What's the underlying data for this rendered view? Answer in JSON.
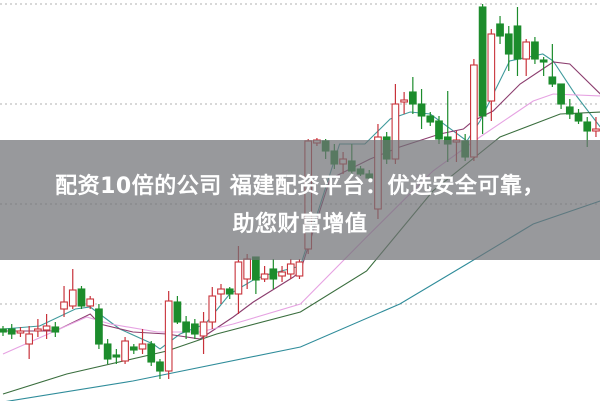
{
  "banner": {
    "line1": "配资10倍的公司 福建配资平台：优选安全可靠，",
    "line2": "助您财富增值"
  },
  "chart_data": {
    "type": "candlestick",
    "title": "",
    "xlabel": "",
    "ylabel": "",
    "ylim": [
      0,
      40.4
    ],
    "grid": true,
    "grid_levels": [
      40,
      30,
      20,
      10
    ],
    "colors": {
      "up": "#c8323a",
      "down": "#1c8c2c",
      "grid": "#b0b0b0",
      "banner": "#707176"
    },
    "candles": [
      [
        7.5,
        7.8,
        6.8,
        7.2
      ],
      [
        7.5,
        8.0,
        6.5,
        7.0
      ],
      [
        7.1,
        7.7,
        6.7,
        7.3
      ],
      [
        6.0,
        7.8,
        4.5,
        7.0
      ],
      [
        7.3,
        8.5,
        6.7,
        7.5
      ],
      [
        7.4,
        9.0,
        6.5,
        7.8
      ],
      [
        7.7,
        8.2,
        6.7,
        7.2
      ],
      [
        9.5,
        11.8,
        8.7,
        10.2
      ],
      [
        9.8,
        13.5,
        9.5,
        11.4
      ],
      [
        11.5,
        11.8,
        9.5,
        9.8
      ],
      [
        9.8,
        10.8,
        9.5,
        10.5
      ],
      [
        9.5,
        10.0,
        5.5,
        6.0
      ],
      [
        6.0,
        6.5,
        4.0,
        4.5
      ],
      [
        4.9,
        5.5,
        4.0,
        4.7
      ],
      [
        4.3,
        6.7,
        4.0,
        6.3
      ],
      [
        5.7,
        6.0,
        5.0,
        5.4
      ],
      [
        5.5,
        7.5,
        5.0,
        6.0
      ],
      [
        6.0,
        6.3,
        3.8,
        4.2
      ],
      [
        4.2,
        4.5,
        2.5,
        3.3
      ],
      [
        3.3,
        11.3,
        2.5,
        10.3
      ],
      [
        10.2,
        10.8,
        8.0,
        8.2
      ],
      [
        8.2,
        8.8,
        6.5,
        7.2
      ],
      [
        8.0,
        8.5,
        6.5,
        7.0
      ],
      [
        6.8,
        9.2,
        5.0,
        8.2
      ],
      [
        8.2,
        11.7,
        7.5,
        10.8
      ],
      [
        11.0,
        12.0,
        10.0,
        11.5
      ],
      [
        11.5,
        11.7,
        10.5,
        11.0
      ],
      [
        11.0,
        15.8,
        9.0,
        14.2
      ],
      [
        12.5,
        15.0,
        11.5,
        14.5
      ],
      [
        14.7,
        14.7,
        11.0,
        12.4
      ],
      [
        12.5,
        13.8,
        12.2,
        13.0
      ],
      [
        13.5,
        14.5,
        11.5,
        12.5
      ],
      [
        12.8,
        13.8,
        12.2,
        13.2
      ],
      [
        13.0,
        14.5,
        12.5,
        14.0
      ],
      [
        12.8,
        14.5,
        12.5,
        14.2
      ],
      [
        15.5,
        26.5,
        15.0,
        26.3
      ],
      [
        26.1,
        26.6,
        25.8,
        26.4
      ],
      [
        26.3,
        26.5,
        24.5,
        25.3
      ],
      [
        25.3,
        26.0,
        23.5,
        24.0
      ],
      [
        24.0,
        25.2,
        23.0,
        24.5
      ],
      [
        24.3,
        26.0,
        23.0,
        23.3
      ],
      [
        23.5,
        23.8,
        22.8,
        23.0
      ],
      [
        23.0,
        23.4,
        22.2,
        22.6
      ],
      [
        19.5,
        28.0,
        18.5,
        26.7
      ],
      [
        26.7,
        27.2,
        24.0,
        24.5
      ],
      [
        24.5,
        32.0,
        24.0,
        30.0
      ],
      [
        30.2,
        31.2,
        29.0,
        30.4
      ],
      [
        31.2,
        32.7,
        29.0,
        30.0
      ],
      [
        30.0,
        31.5,
        27.5,
        28.8
      ],
      [
        28.8,
        29.2,
        27.8,
        28.2
      ],
      [
        28.3,
        28.8,
        26.0,
        26.5
      ],
      [
        26.7,
        31.3,
        24.2,
        26.0
      ],
      [
        26.2,
        27.3,
        24.2,
        26.4
      ],
      [
        26.3,
        27.0,
        24.3,
        24.7
      ],
      [
        24.7,
        34.5,
        24.3,
        33.9
      ],
      [
        39.7,
        40.0,
        27.0,
        28.8
      ],
      [
        30.3,
        37.5,
        28.3,
        37.0
      ],
      [
        38.0,
        38.8,
        36.0,
        36.8
      ],
      [
        37.0,
        37.8,
        33.3,
        35.0
      ],
      [
        37.8,
        39.7,
        32.8,
        34.5
      ],
      [
        34.5,
        36.5,
        32.8,
        36.2
      ],
      [
        36.2,
        36.7,
        34.0,
        34.5
      ],
      [
        34.4,
        34.7,
        32.8,
        34.2
      ],
      [
        32.7,
        36.0,
        31.7,
        32.0
      ],
      [
        32.0,
        32.0,
        29.5,
        30.0
      ],
      [
        29.7,
        30.5,
        28.5,
        29.0
      ],
      [
        29.0,
        29.5,
        28.0,
        28.3
      ],
      [
        28.2,
        28.7,
        25.7,
        27.3
      ],
      [
        27.3,
        28.7,
        26.7,
        27.5
      ]
    ],
    "moving_averages": [
      {
        "color": "#3f9a9c",
        "points": [
          [
            0,
            7.5
          ],
          [
            4.2,
            7.8
          ],
          [
            8.3,
            9.5
          ],
          [
            10,
            9.7
          ],
          [
            13.4,
            7.5
          ],
          [
            17.2,
            6.0
          ],
          [
            18,
            5.5
          ],
          [
            20.3,
            7.0
          ],
          [
            23.2,
            8.0
          ],
          [
            26,
            11.0
          ],
          [
            28.9,
            12.5
          ],
          [
            30.6,
            13.0
          ],
          [
            34.1,
            13.8
          ],
          [
            36.4,
            20.0
          ],
          [
            38.6,
            26.0
          ],
          [
            41.5,
            26.0
          ],
          [
            44.4,
            28.5
          ],
          [
            46.7,
            29.2
          ],
          [
            49,
            29.0
          ],
          [
            53.2,
            26.3
          ],
          [
            54.7,
            28.3
          ],
          [
            58.1,
            34.3
          ],
          [
            61.9,
            35.0
          ],
          [
            63.1,
            34.3
          ],
          [
            65.6,
            31.0
          ],
          [
            68.5,
            27.7
          ]
        ]
      },
      {
        "color": "#8b3d6e",
        "points": [
          [
            0,
            7.3
          ],
          [
            6,
            7.3
          ],
          [
            10,
            9.0
          ],
          [
            11.1,
            8.0
          ],
          [
            14.9,
            7.2
          ],
          [
            18.8,
            7.0
          ],
          [
            22.6,
            6.5
          ],
          [
            26.4,
            8.7
          ],
          [
            28.7,
            10.2
          ],
          [
            33.3,
            12.7
          ],
          [
            34.1,
            13.3
          ],
          [
            37.5,
            22.5
          ],
          [
            42.1,
            24.5
          ],
          [
            45.5,
            25.7
          ],
          [
            50.1,
            27.0
          ],
          [
            52.8,
            27.5
          ],
          [
            53.9,
            28.3
          ],
          [
            56.2,
            29.3
          ],
          [
            59.3,
            32.0
          ],
          [
            63.1,
            34.2
          ],
          [
            65,
            34.0
          ],
          [
            68.5,
            31.0
          ]
        ]
      },
      {
        "color": "#e6a2e2",
        "points": [
          [
            0,
            5.0
          ],
          [
            9.6,
            8.7
          ],
          [
            12.3,
            8.0
          ],
          [
            17.7,
            7.2
          ],
          [
            22.6,
            7.2
          ],
          [
            26.4,
            8.0
          ],
          [
            34.1,
            10.0
          ],
          [
            41.7,
            16.7
          ],
          [
            49.3,
            23.3
          ],
          [
            54.7,
            26.7
          ],
          [
            60.8,
            30.3
          ],
          [
            63.1,
            31.0
          ],
          [
            68.5,
            30.8
          ]
        ]
      },
      {
        "color": "#3a6e3e",
        "points": [
          [
            0,
            1.0
          ],
          [
            7.3,
            3.0
          ],
          [
            18.8,
            5.3
          ],
          [
            24.5,
            7.0
          ],
          [
            34.1,
            9.2
          ],
          [
            41.7,
            13.3
          ],
          [
            49.3,
            21.3
          ],
          [
            57,
            26.7
          ],
          [
            63.9,
            29.0
          ],
          [
            68.5,
            29.2
          ]
        ]
      },
      {
        "color": "#2f8c9a",
        "points": [
          [
            0,
            0.2
          ],
          [
            14.9,
            2.3
          ],
          [
            34.1,
            5.7
          ],
          [
            45.5,
            10.0
          ],
          [
            53.2,
            14.0
          ],
          [
            60.8,
            18.0
          ],
          [
            68.5,
            20.3
          ]
        ]
      }
    ]
  }
}
